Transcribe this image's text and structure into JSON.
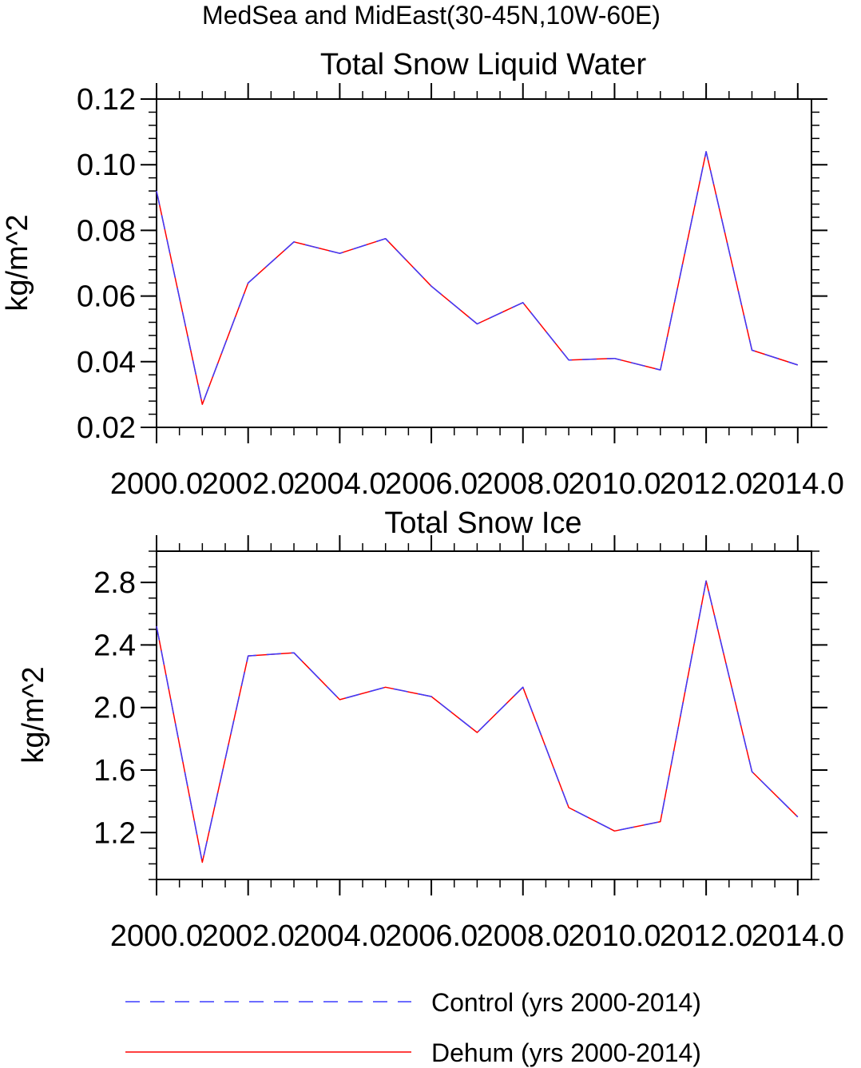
{
  "figure_title": "MedSea and MidEast(30-45N,10W-60E)",
  "legend": {
    "entries": [
      {
        "label": "Control (yrs 2000-2014)",
        "color": "#3b3bff",
        "style": "dashed"
      },
      {
        "label": "Dehum (yrs 2000-2014)",
        "color": "#ff0000",
        "style": "solid"
      }
    ]
  },
  "chart_data": [
    {
      "type": "line",
      "title": "Total Snow Liquid Water",
      "xlabel": "",
      "ylabel": "kg/m^2",
      "xlim": [
        2000,
        2014.3
      ],
      "ylim": [
        0.02,
        0.12
      ],
      "x_ticks": [
        2000,
        2002,
        2004,
        2006,
        2008,
        2010,
        2012,
        2014
      ],
      "x_tick_labels": [
        "2000.0",
        "2002.0",
        "2004.0",
        "2006.0",
        "2008.0",
        "2010.0",
        "2012.0",
        "2014.0"
      ],
      "y_ticks": [
        0.02,
        0.04,
        0.06,
        0.08,
        0.1,
        0.12
      ],
      "y_tick_labels": [
        "0.02",
        "0.04",
        "0.06",
        "0.08",
        "0.10",
        "0.12"
      ],
      "x": [
        2000,
        2001,
        2002,
        2003,
        2004,
        2005,
        2006,
        2007,
        2008,
        2009,
        2010,
        2011,
        2012,
        2013,
        2014
      ],
      "series": [
        {
          "name": "Control (yrs 2000-2014)",
          "values": [
            0.092,
            0.027,
            0.064,
            0.0765,
            0.073,
            0.0775,
            0.063,
            0.0515,
            0.058,
            0.0405,
            0.041,
            0.0375,
            0.104,
            0.0435,
            0.039
          ]
        },
        {
          "name": "Dehum (yrs 2000-2014)",
          "values": [
            0.092,
            0.027,
            0.064,
            0.0765,
            0.073,
            0.0775,
            0.063,
            0.0515,
            0.058,
            0.0405,
            0.041,
            0.0375,
            0.104,
            0.0435,
            0.039
          ]
        }
      ]
    },
    {
      "type": "line",
      "title": "Total Snow Ice",
      "xlabel": "",
      "ylabel": "kg/m^2",
      "xlim": [
        2000,
        2014.3
      ],
      "ylim": [
        0.9,
        3.0
      ],
      "x_ticks": [
        2000,
        2002,
        2004,
        2006,
        2008,
        2010,
        2012,
        2014
      ],
      "x_tick_labels": [
        "2000.0",
        "2002.0",
        "2004.0",
        "2006.0",
        "2008.0",
        "2010.0",
        "2012.0",
        "2014.0"
      ],
      "y_ticks": [
        1.2,
        1.6,
        2.0,
        2.4,
        2.8
      ],
      "y_tick_labels": [
        "1.2",
        "1.6",
        "2.0",
        "2.4",
        "2.8"
      ],
      "x": [
        2000,
        2001,
        2002,
        2003,
        2004,
        2005,
        2006,
        2007,
        2008,
        2009,
        2010,
        2011,
        2012,
        2013,
        2014
      ],
      "series": [
        {
          "name": "Control (yrs 2000-2014)",
          "values": [
            2.52,
            1.01,
            2.33,
            2.35,
            2.05,
            2.13,
            2.07,
            1.84,
            2.13,
            1.36,
            1.21,
            1.27,
            2.81,
            1.59,
            1.3
          ]
        },
        {
          "name": "Dehum (yrs 2000-2014)",
          "values": [
            2.52,
            1.01,
            2.33,
            2.35,
            2.05,
            2.13,
            2.07,
            1.84,
            2.13,
            1.36,
            1.21,
            1.27,
            2.81,
            1.59,
            1.3
          ]
        }
      ]
    }
  ]
}
